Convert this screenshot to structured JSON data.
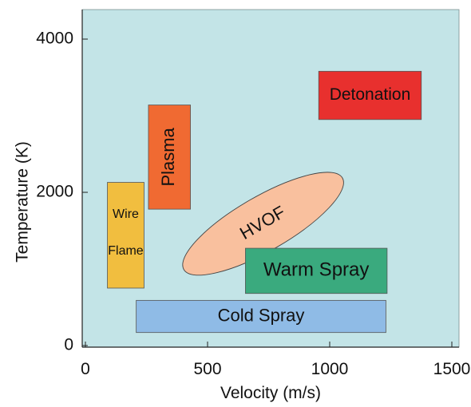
{
  "chart_data": {
    "type": "area",
    "title": "",
    "xlabel": "Velocity (m/s)",
    "ylabel": "Temperature (K)",
    "xlim": [
      0,
      1500
    ],
    "ylim": [
      0,
      4000
    ],
    "xticks": [
      0,
      500,
      1000,
      1500
    ],
    "yticks": [
      0,
      2000,
      4000
    ],
    "grid": false,
    "plot_background": "#c3e4e7",
    "regions": [
      {
        "label": "Detonation",
        "shape": "rect",
        "x": [
          955,
          1375
        ],
        "y": [
          2950,
          3580
        ],
        "color": "#e8302e"
      },
      {
        "label": "Plasma",
        "shape": "rect",
        "x": [
          258,
          430
        ],
        "y": [
          1780,
          3140
        ],
        "color": "#f06a32",
        "label_rotation": -90
      },
      {
        "label": "Wire Flame",
        "label_lines": [
          "Wire",
          "Flame"
        ],
        "shape": "rect",
        "x": [
          90,
          240
        ],
        "y": [
          750,
          2130
        ],
        "color": "#f1be3f"
      },
      {
        "label": "HVOF",
        "shape": "ellipse",
        "x": [
          350,
          1105
        ],
        "y": [
          800,
          2380
        ],
        "angle": -30,
        "color": "#f9c09e",
        "label_rotation": -30
      },
      {
        "label": "Warm Spray",
        "shape": "rect",
        "x": [
          655,
          1235
        ],
        "y": [
          680,
          1270
        ],
        "color": "#3aaa7e"
      },
      {
        "label": "Cold Spray",
        "shape": "rect",
        "x": [
          208,
          1230
        ],
        "y": [
          170,
          590
        ],
        "color": "#8fbbe6"
      }
    ]
  }
}
